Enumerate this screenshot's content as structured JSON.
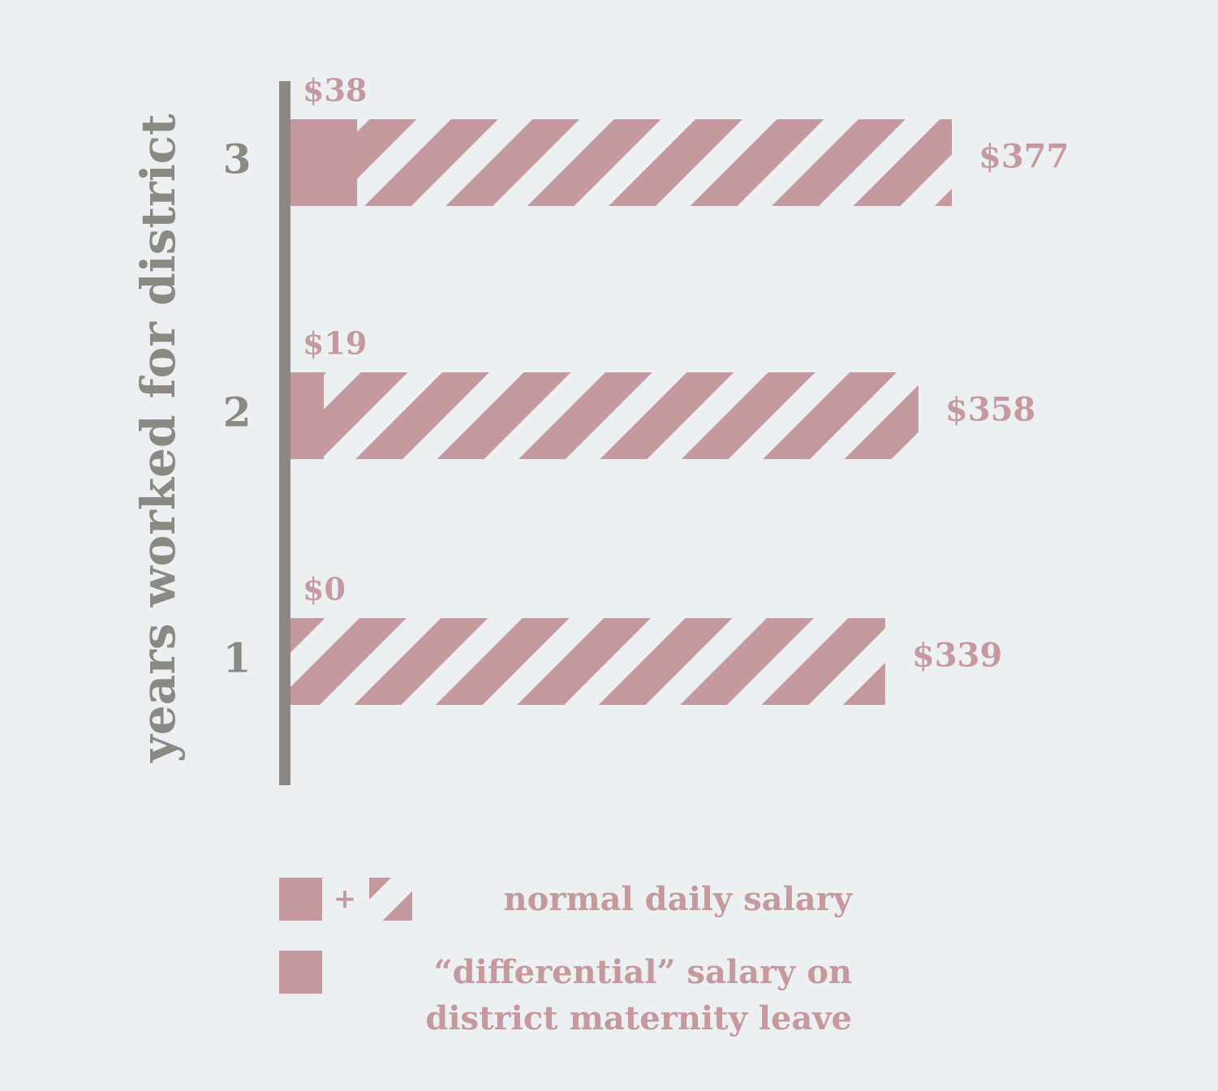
{
  "chart_data": {
    "type": "bar",
    "y_label": "years worked for district",
    "categories": [
      "3",
      "2",
      "1"
    ],
    "series": [
      {
        "name": "normal daily salary",
        "color": "#c49a9e",
        "pattern": "hatched",
        "values": [
          377,
          358,
          339
        ],
        "value_labels": [
          "$377",
          "$358",
          "$339"
        ]
      },
      {
        "name": "“differential” salary on district maternity leave",
        "color": "#c49a9e",
        "pattern": "solid",
        "values": [
          38,
          19,
          0
        ],
        "value_labels": [
          "$38",
          "$19",
          "$0"
        ]
      }
    ],
    "axis_color": "#8a8a82"
  }
}
